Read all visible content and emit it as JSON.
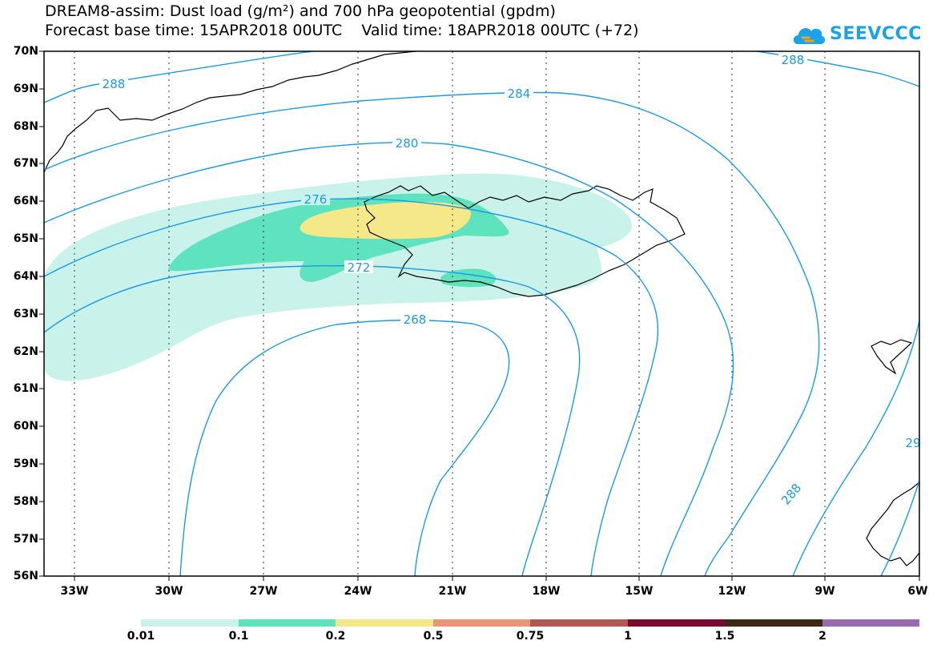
{
  "title_line1": "DREAM8-assim: Dust load (g/m²) and 700 hPa geopotential (gpdm)",
  "title_line2": "Forecast base time: 15APR2018 00UTC    Valid time: 18APR2018 00UTC (+72)",
  "logo_text": "SEEVCCC",
  "logo_icon": "cloud-icon",
  "lat_labels": [
    "70N",
    "69N",
    "68N",
    "67N",
    "66N",
    "65N",
    "64N",
    "63N",
    "62N",
    "61N",
    "60N",
    "59N",
    "58N",
    "57N",
    "56N"
  ],
  "lon_labels": [
    "33W",
    "30W",
    "27W",
    "24W",
    "21W",
    "18W",
    "15W",
    "12W",
    "9W",
    "6W"
  ],
  "contour_labels": [
    "288",
    "284",
    "280",
    "276",
    "272",
    "268",
    "288",
    "29"
  ],
  "colorbar": {
    "colors": [
      "#c8f2ea",
      "#5fe3be",
      "#f5e888",
      "#e8967a",
      "#b05a55",
      "#7a0a2e",
      "#3a2a14",
      "#9a6ab0"
    ],
    "labels": [
      "0.01",
      "0.1",
      "0.2",
      "0.5",
      "0.75",
      "1",
      "1.5",
      "2"
    ]
  },
  "colors": {
    "contour": "#1a9ae6",
    "coast": "#000000",
    "dust_low": "#c8f2ea",
    "dust_mid": "#5fe3be",
    "dust_high": "#f5e888"
  }
}
